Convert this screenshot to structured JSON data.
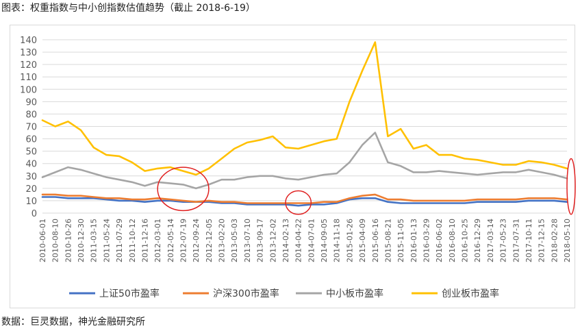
{
  "title": "图表：权重指数与中小创指数估值趋势（截止 2018-6-19）",
  "source": "数据：巨灵数据，神光金融研究所",
  "chart_data": {
    "type": "line",
    "ylim": [
      0,
      140
    ],
    "yticks": [
      0,
      10,
      20,
      30,
      40,
      50,
      60,
      70,
      80,
      90,
      100,
      110,
      120,
      130,
      140
    ],
    "categories": [
      "2010-06-01",
      "2010-08-10",
      "2010-10-26",
      "2010-12-30",
      "2011-03-15",
      "2011-05-24",
      "2011-07-29",
      "2011-10-12",
      "2011-12-16",
      "2012-03-01",
      "2012-05-14",
      "2012-07-19",
      "2012-09-24",
      "2012-12-05",
      "2013-02-20",
      "2013-05-03",
      "2013-07-10",
      "2013-09-17",
      "2013-12-02",
      "2014-02-13",
      "2014-04-22",
      "2014-07-01",
      "2014-09-05",
      "2014-11-18",
      "2015-01-26",
      "2015-04-09",
      "2015-06-16",
      "2015-08-21",
      "2015-11-05",
      "2016-01-13",
      "2016-03-29",
      "2016-06-02",
      "2016-08-10",
      "2016-10-25",
      "2016-12-29",
      "2017-03-14",
      "2017-05-23",
      "2017-07-31",
      "2017-10-11",
      "2017-12-15",
      "2018-02-28",
      "2018-05-10"
    ],
    "legend_position": "bottom",
    "grid": true,
    "series": [
      {
        "name": "上证50市盈率",
        "color": "#4472C4",
        "values": [
          13,
          13,
          12,
          12,
          12,
          11,
          10,
          10,
          9,
          10,
          10,
          9,
          9,
          9,
          8,
          8,
          7,
          7,
          7,
          7,
          6,
          7,
          7,
          8,
          11,
          12,
          12,
          9,
          8,
          8,
          8,
          8,
          8,
          8,
          9,
          9,
          9,
          9,
          10,
          10,
          10,
          9
        ]
      },
      {
        "name": "沪深300市盈率",
        "color": "#ED7D31",
        "values": [
          15,
          15,
          14,
          14,
          13,
          12,
          12,
          11,
          11,
          12,
          11,
          10,
          9,
          10,
          9,
          9,
          8,
          8,
          8,
          8,
          8,
          8,
          9,
          9,
          12,
          14,
          15,
          11,
          11,
          10,
          10,
          10,
          10,
          10,
          11,
          11,
          11,
          11,
          12,
          12,
          12,
          11
        ]
      },
      {
        "name": "中小板市盈率",
        "color": "#A5A5A5",
        "values": [
          29,
          33,
          37,
          35,
          32,
          29,
          27,
          25,
          22,
          25,
          24,
          23,
          20,
          23,
          27,
          27,
          29,
          30,
          30,
          28,
          27,
          29,
          31,
          32,
          41,
          55,
          65,
          41,
          38,
          33,
          33,
          34,
          33,
          32,
          31,
          32,
          33,
          33,
          35,
          33,
          31,
          28
        ]
      },
      {
        "name": "创业板市盈率",
        "color": "#FFC000",
        "values": [
          75,
          70,
          74,
          67,
          53,
          47,
          46,
          41,
          34,
          36,
          37,
          34,
          31,
          36,
          44,
          52,
          57,
          59,
          62,
          53,
          52,
          55,
          58,
          60,
          90,
          115,
          138,
          62,
          68,
          52,
          55,
          47,
          47,
          44,
          43,
          41,
          39,
          39,
          42,
          41,
          39,
          36
        ]
      }
    ],
    "x_tick_labels": [
      "2010-06-01",
      "2010-08-10",
      "2010-10-26",
      "2010-12-30",
      "2011-03-15",
      "2011-05-24",
      "2011-07-29",
      "2011-10-12",
      "2011-12-16",
      "2012-03-01",
      "2012-05-14",
      "2012-07-19",
      "2012-09-24",
      "2012-12-05",
      "2013-02-20",
      "2013-05-03",
      "2013-07-10",
      "2013-09-17",
      "2013-12-02",
      "2014-02-13",
      "2014-04-22",
      "2014-07-01",
      "2014-09-05",
      "2014-11-18",
      "2015-01-26",
      "2015-04-09",
      "2015-06-16",
      "2015-08-21",
      "2015-11-05",
      "2016-01-13",
      "2016-03-29",
      "2016-06-02",
      "2016-08-10",
      "2016-10-25",
      "2016-12-29",
      "2017-03-14",
      "2017-05-23",
      "2017-07-31",
      "2017-10-11",
      "2017-12-15",
      "2018-02-28",
      "2018-05-10"
    ],
    "annotations": [
      {
        "type": "ellipse",
        "color": "#E02020",
        "x_from": "2012-03-01",
        "x_to": "2012-12-05",
        "y_from": 2,
        "y_to": 37
      },
      {
        "type": "ellipse",
        "color": "#E02020",
        "x_from": "2014-02-13",
        "x_to": "2014-07-01",
        "y_from": -1,
        "y_to": 18
      },
      {
        "type": "ellipse",
        "color": "#E02020",
        "x_from": "2018-05-10",
        "x_to": "2018-06-19",
        "y_from": -1,
        "y_to": 44
      }
    ]
  }
}
